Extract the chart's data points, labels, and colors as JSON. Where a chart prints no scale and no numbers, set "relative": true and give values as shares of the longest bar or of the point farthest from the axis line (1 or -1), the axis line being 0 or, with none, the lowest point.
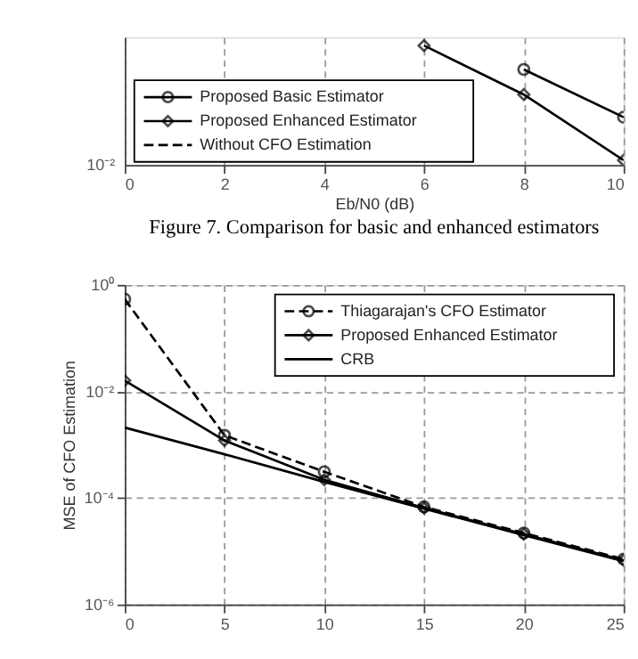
{
  "chart_data": [
    {
      "type": "line",
      "xlabel": "Eb/N0 (dB)",
      "xlim": [
        0,
        10
      ],
      "xticks": [
        0,
        2,
        4,
        6,
        8,
        10
      ],
      "relative": true,
      "grid": "x",
      "legend": "bottom left",
      "annotations": [
        "10⁻²",
        "Figure 7. Comparison for basic and enhanced estimators"
      ],
      "series": [
        {
          "name": "Proposed Basic Estimator",
          "color": "#000000",
          "marker": "circle",
          "line_style": "solid",
          "x": [
            8,
            10
          ],
          "values": [
            0.8,
            0.4
          ]
        },
        {
          "name": "Proposed Enhanced Estimator",
          "color": "#000000",
          "marker": "diamond",
          "line_style": "solid",
          "x": [
            6,
            8,
            10
          ],
          "values": [
            1,
            0.59,
            0.04
          ]
        },
        {
          "name": "Without CFO Estimation",
          "color": "#000000",
          "marker": "none",
          "line_style": "dashed"
        }
      ]
    },
    {
      "type": "line",
      "ylabel": "MSE of CFO Estimation",
      "xlim": [
        0,
        25
      ],
      "xticks": [
        0,
        5,
        10,
        15,
        20,
        25
      ],
      "ylim": [
        1e-06,
        1
      ],
      "log": "y",
      "yticks": [
        {
          "value": 1e-06,
          "label": "10⁻⁶"
        },
        {
          "value": 0.0001,
          "label": "10⁻⁴"
        },
        {
          "value": 0.01,
          "label": "10⁻²"
        },
        {
          "value": 1,
          "label": "10⁰"
        }
      ],
      "grid": true,
      "legend": "top right",
      "series": [
        {
          "name": "Thiagarajan's CFO Estimator",
          "color": "#000000",
          "marker": "circle",
          "line_style": "dashed",
          "x": [
            0,
            5,
            10,
            15,
            20,
            25
          ],
          "values": [
            0.54,
            0.0015,
            0.00031,
            6.8e-05,
            2.2e-05,
            7.1e-06
          ]
        },
        {
          "name": "Proposed Enhanced Estimator",
          "color": "#000000",
          "marker": "diamond",
          "line_style": "solid",
          "x": [
            0,
            5,
            10,
            15,
            20,
            25
          ],
          "values": [
            0.016,
            0.0012,
            0.00022,
            6.5e-05,
            2.1e-05,
            6.8e-06
          ]
        },
        {
          "name": "CRB",
          "color": "#000000",
          "marker": "none",
          "line_style": "solid",
          "x": [
            0,
            5,
            10,
            15,
            20,
            25
          ],
          "values": [
            0.0021,
            0.00066,
            0.0002,
            6.3e-05,
            2e-05,
            6.5e-06
          ]
        }
      ]
    }
  ]
}
